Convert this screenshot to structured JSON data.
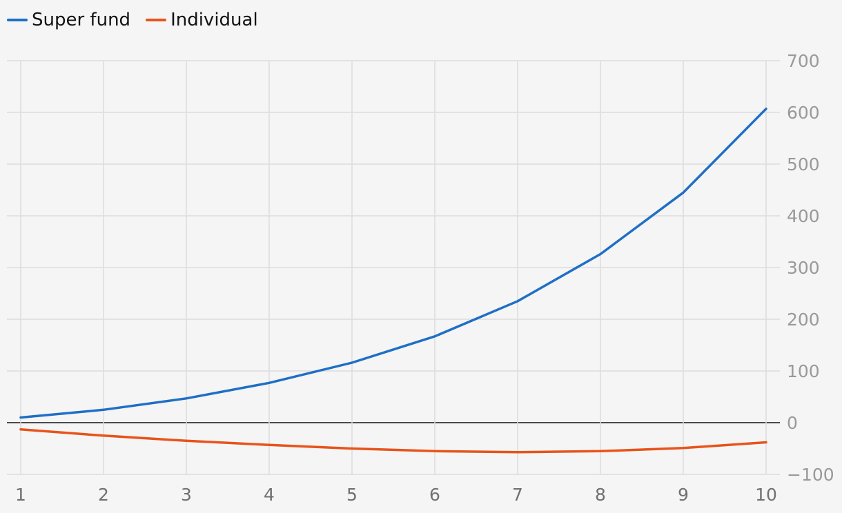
{
  "chart_data": {
    "type": "line",
    "title": "",
    "xlabel": "",
    "ylabel": "",
    "x": [
      1,
      2,
      3,
      4,
      5,
      6,
      7,
      8,
      9,
      10
    ],
    "xlim": [
      1,
      10
    ],
    "ylim": [
      -100,
      700
    ],
    "y_ticks": [
      700,
      600,
      500,
      400,
      300,
      200,
      100,
      0,
      -100
    ],
    "y_tick_labels": [
      "700",
      "600",
      "500",
      "400",
      "300",
      "200",
      "100",
      "0",
      "−100"
    ],
    "x_tick_labels": [
      "1",
      "2",
      "3",
      "4",
      "5",
      "6",
      "7",
      "8",
      "9",
      "10"
    ],
    "grid": true,
    "y_axis_position": "right",
    "legend_position": "top-left",
    "series": [
      {
        "name": "Super fund",
        "color": "#1f6fc5",
        "values": [
          10,
          25,
          47,
          77,
          116,
          167,
          235,
          326,
          445,
          607
        ]
      },
      {
        "name": "Individual",
        "color": "#e8531a",
        "values": [
          -13,
          -25,
          -35,
          -43,
          -50,
          -55,
          -57,
          -55,
          -49,
          -38
        ]
      }
    ]
  }
}
